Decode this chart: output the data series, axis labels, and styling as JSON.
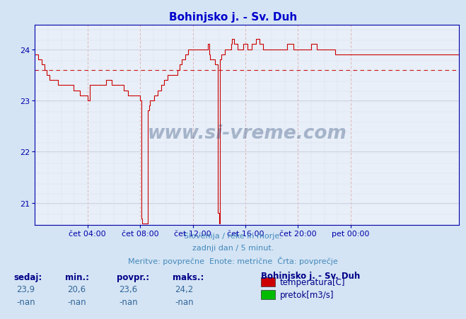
{
  "title": "Bohinjsko j. - Sv. Duh",
  "title_color": "#0000cc",
  "bg_color": "#d4e4f4",
  "plot_bg_color": "#e8eff8",
  "line_color": "#cc0000",
  "avg_value": 23.6,
  "ylim_min": 20.575,
  "ylim_max": 24.475,
  "yticks": [
    21,
    22,
    23,
    24
  ],
  "footer_color": "#4488bb",
  "footer_line1": "Slovenija / reke in morje.",
  "footer_line2": "zadnji dan / 5 minut.",
  "footer_line3": "Meritve: povprečne  Enote: metrične  Črta: povprečje",
  "stats_label_color": "#000088",
  "stats_value_color": "#336699",
  "stats_labels": [
    "sedaj:",
    "min.:",
    "povpr.:",
    "maks.:"
  ],
  "stats_values": [
    "23,9",
    "20,6",
    "23,6",
    "24,2"
  ],
  "stats_values2": [
    "-nan",
    "-nan",
    "-nan",
    "-nan"
  ],
  "legend_station": "Bohinjsko j. - Sv. Duh",
  "legend_items": [
    {
      "label": "temperatura[C]",
      "color": "#cc0000"
    },
    {
      "label": "pretok[m3/s]",
      "color": "#00bb00"
    }
  ],
  "watermark": "www.si-vreme.com",
  "xtick_labels": [
    "čet 04:00",
    "čet 08:00",
    "čet 12:00",
    "čet 16:00",
    "čet 20:00",
    "pet 00:00"
  ],
  "temperature_data": [
    23.9,
    23.9,
    23.9,
    23.8,
    23.8,
    23.8,
    23.7,
    23.7,
    23.7,
    23.6,
    23.6,
    23.5,
    23.5,
    23.4,
    23.4,
    23.4,
    23.4,
    23.4,
    23.4,
    23.4,
    23.4,
    23.3,
    23.3,
    23.3,
    23.3,
    23.3,
    23.3,
    23.3,
    23.3,
    23.3,
    23.3,
    23.3,
    23.3,
    23.3,
    23.3,
    23.2,
    23.2,
    23.2,
    23.2,
    23.2,
    23.2,
    23.1,
    23.1,
    23.1,
    23.1,
    23.1,
    23.1,
    23.1,
    23.0,
    23.0,
    23.3,
    23.3,
    23.3,
    23.3,
    23.3,
    23.3,
    23.3,
    23.3,
    23.3,
    23.3,
    23.3,
    23.3,
    23.3,
    23.3,
    23.3,
    23.4,
    23.4,
    23.4,
    23.4,
    23.4,
    23.3,
    23.3,
    23.3,
    23.3,
    23.3,
    23.3,
    23.3,
    23.3,
    23.3,
    23.3,
    23.3,
    23.2,
    23.2,
    23.2,
    23.2,
    23.1,
    23.1,
    23.1,
    23.1,
    23.1,
    23.1,
    23.1,
    23.1,
    23.1,
    23.1,
    23.1,
    23.0,
    20.7,
    20.6,
    20.6,
    20.6,
    20.6,
    20.6,
    22.8,
    22.9,
    23.0,
    23.0,
    23.0,
    23.0,
    23.1,
    23.1,
    23.1,
    23.2,
    23.2,
    23.2,
    23.3,
    23.3,
    23.3,
    23.4,
    23.4,
    23.4,
    23.5,
    23.5,
    23.5,
    23.5,
    23.5,
    23.5,
    23.5,
    23.5,
    23.5,
    23.6,
    23.6,
    23.7,
    23.7,
    23.8,
    23.8,
    23.8,
    23.9,
    23.9,
    23.9,
    24.0,
    24.0,
    24.0,
    24.0,
    24.0,
    24.0,
    24.0,
    24.0,
    24.0,
    24.0,
    24.0,
    24.0,
    24.0,
    24.0,
    24.0,
    24.0,
    24.0,
    24.0,
    24.1,
    23.9,
    23.8,
    23.8,
    23.8,
    23.8,
    23.7,
    23.7,
    23.7,
    20.8,
    20.6,
    23.8,
    23.9,
    23.9,
    23.9,
    24.0,
    24.0,
    24.0,
    24.0,
    24.0,
    24.0,
    24.1,
    24.2,
    24.2,
    24.1,
    24.1,
    24.1,
    24.0,
    24.0,
    24.0,
    24.0,
    24.0,
    24.1,
    24.1,
    24.1,
    24.1,
    24.0,
    24.0,
    24.0,
    24.0,
    24.1,
    24.1,
    24.1,
    24.1,
    24.2,
    24.2,
    24.2,
    24.1,
    24.1,
    24.1,
    24.0,
    24.0,
    24.0,
    24.0,
    24.0,
    24.0,
    24.0,
    24.0,
    24.0,
    24.0,
    24.0,
    24.0,
    24.0,
    24.0,
    24.0,
    24.0,
    24.0,
    24.0,
    24.0,
    24.0,
    24.0,
    24.0,
    24.1,
    24.1,
    24.1,
    24.1,
    24.1,
    24.1,
    24.0,
    24.0,
    24.0,
    24.0,
    24.0,
    24.0,
    24.0,
    24.0,
    24.0,
    24.0,
    24.0,
    24.0,
    24.0,
    24.0,
    24.0,
    24.0,
    24.1,
    24.1,
    24.1,
    24.1,
    24.1,
    24.0,
    24.0,
    24.0,
    24.0,
    24.0,
    24.0,
    24.0,
    24.0,
    24.0,
    24.0,
    24.0,
    24.0,
    24.0,
    24.0,
    24.0,
    24.0,
    24.0,
    23.9,
    23.9,
    23.9,
    23.9,
    23.9,
    23.9,
    23.9,
    23.9,
    23.9,
    23.9,
    23.9,
    23.9,
    23.9,
    23.9,
    23.9,
    23.9,
    23.9,
    23.9,
    23.9,
    23.9,
    23.9,
    23.9,
    23.9,
    23.9,
    23.9,
    23.9,
    23.9,
    23.9,
    23.9,
    23.9,
    23.9,
    23.9,
    23.9,
    23.9,
    23.9,
    23.9,
    23.9,
    23.9,
    23.9,
    23.9,
    23.9,
    23.9,
    23.9,
    23.9,
    23.9,
    23.9,
    23.9,
    23.9,
    23.9,
    23.9,
    23.9,
    23.9,
    23.9,
    23.9,
    23.9,
    23.9,
    23.9,
    23.9,
    23.9,
    23.9,
    23.9,
    23.9,
    23.9,
    23.9,
    23.9,
    23.9,
    23.9,
    23.9,
    23.9,
    23.9,
    23.9,
    23.9,
    23.9,
    23.9,
    23.9,
    23.9,
    23.9,
    23.9,
    23.9,
    23.9,
    23.9,
    23.9,
    23.9,
    23.9,
    23.9,
    23.9,
    23.9,
    23.9,
    23.9,
    23.9,
    23.9,
    23.9,
    23.9,
    23.9,
    23.9,
    23.9,
    23.9,
    23.9,
    23.9,
    23.9,
    23.9,
    23.9,
    23.9,
    23.9,
    23.9,
    23.9,
    23.9,
    23.9,
    23.9,
    23.9,
    23.9,
    23.9,
    23.9,
    23.9
  ]
}
